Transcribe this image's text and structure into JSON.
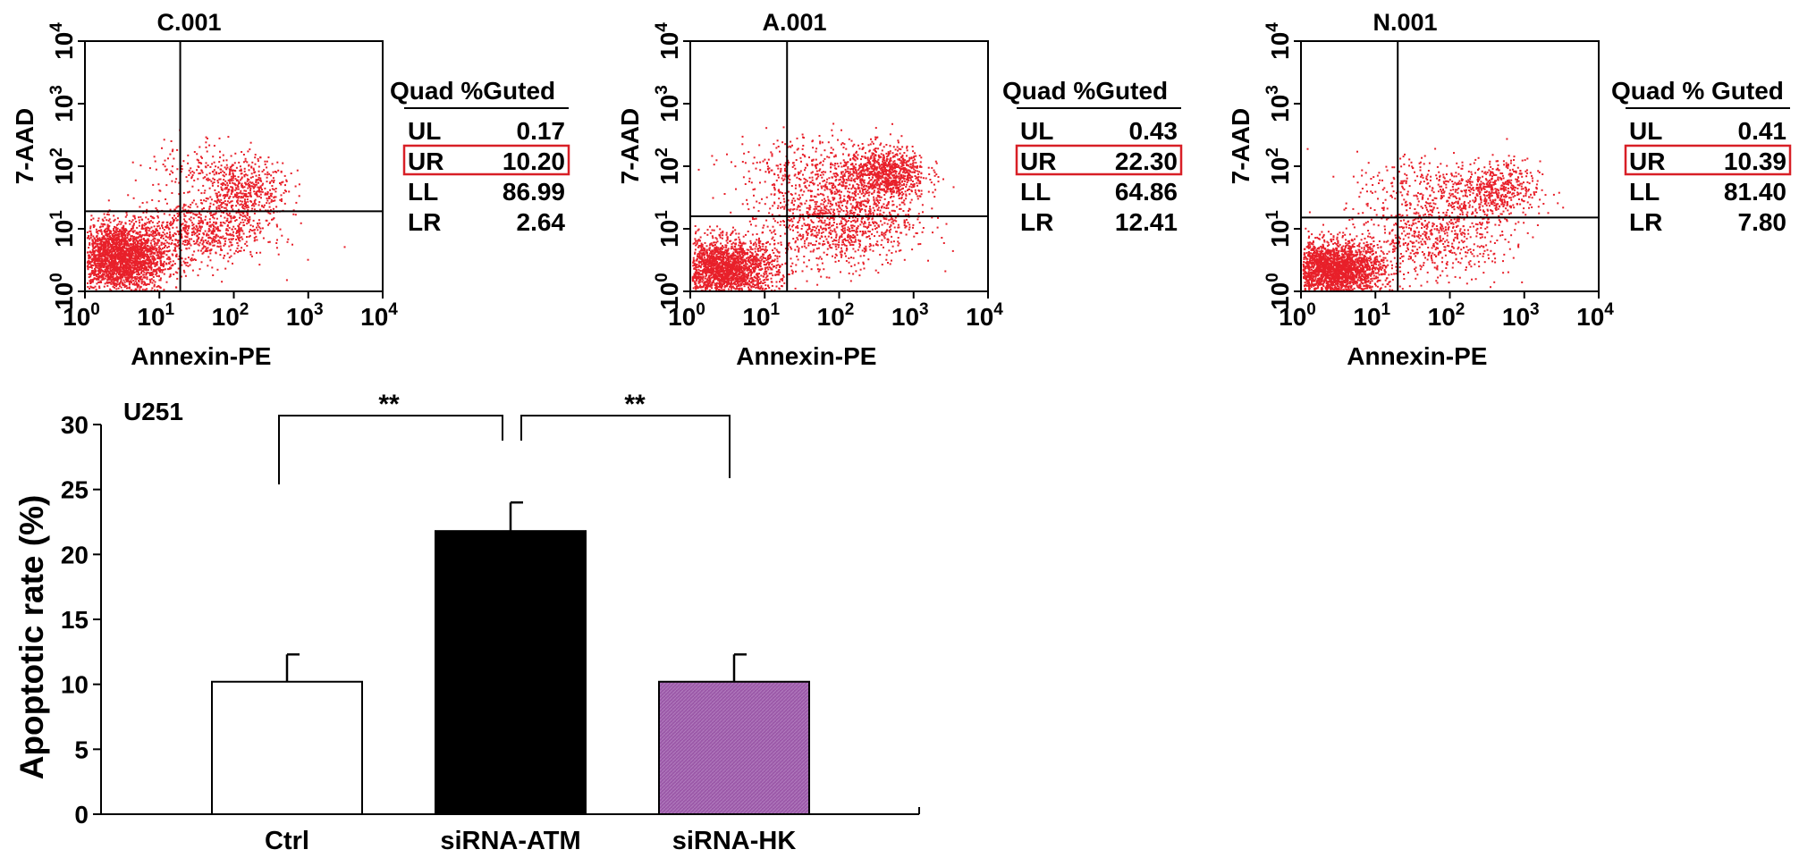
{
  "flow_panels": [
    {
      "title": "C.001",
      "xlabel": "Annexin-PE",
      "ylabel": "7-AAD",
      "x_ticks": [
        "0",
        "1",
        "2",
        "3",
        "4"
      ],
      "y_ticks": [
        "0",
        "1",
        "2",
        "3",
        "4"
      ],
      "tick_base": "10",
      "gate_header": "Quad %Guted",
      "gates": [
        {
          "quad": "UL",
          "value": "0.17"
        },
        {
          "quad": "UR",
          "value": "10.20"
        },
        {
          "quad": "LL",
          "value": "86.99"
        },
        {
          "quad": "LR",
          "value": "2.64"
        }
      ],
      "highlighted_gate": "UR",
      "gate_x": 1.28,
      "gate_y": 1.28
    },
    {
      "title": "A.001",
      "xlabel": "Annexin-PE",
      "ylabel": "7-AAD",
      "x_ticks": [
        "0",
        "1",
        "2",
        "3",
        "4"
      ],
      "y_ticks": [
        "0",
        "1",
        "2",
        "3",
        "4"
      ],
      "tick_base": "10",
      "gate_header": "Quad %Guted",
      "gates": [
        {
          "quad": "UL",
          "value": "0.43"
        },
        {
          "quad": "UR",
          "value": "22.30"
        },
        {
          "quad": "LL",
          "value": "64.86"
        },
        {
          "quad": "LR",
          "value": "12.41"
        }
      ],
      "highlighted_gate": "UR",
      "gate_x": 1.3,
      "gate_y": 1.2
    },
    {
      "title": "N.001",
      "xlabel": "Annexin-PE",
      "ylabel": "7-AAD",
      "x_ticks": [
        "0",
        "1",
        "2",
        "3",
        "4"
      ],
      "y_ticks": [
        "0",
        "1",
        "2",
        "3",
        "4"
      ],
      "tick_base": "10",
      "gate_header": "Quad % Guted",
      "gates": [
        {
          "quad": "UL",
          "value": "0.41"
        },
        {
          "quad": "UR",
          "value": "10.39"
        },
        {
          "quad": "LL",
          "value": "81.40"
        },
        {
          "quad": "LR",
          "value": "7.80"
        }
      ],
      "highlighted_gate": "UR",
      "gate_x": 1.3,
      "gate_y": 1.18
    }
  ],
  "colors": {
    "dots": "#e8202a",
    "gate_box": "#d81f26",
    "bar_ctrl": "#ffffff",
    "bar_atm": "#000000",
    "bar_hk": "#9b59a8"
  },
  "chart_data": {
    "type": "bar",
    "title": "U251",
    "xlabel": "",
    "ylabel": "Apoptotic rate (%)",
    "categories": [
      "Ctrl",
      "siRNA-ATM",
      "siRNA-HK"
    ],
    "values": [
      10.2,
      21.8,
      10.2
    ],
    "errors": [
      2.1,
      2.2,
      2.1
    ],
    "ylim": [
      0,
      30
    ],
    "yticks": [
      0,
      5,
      10,
      15,
      20,
      25,
      30
    ],
    "significance": [
      {
        "from": "Ctrl",
        "to": "siRNA-ATM",
        "label": "**"
      },
      {
        "from": "siRNA-ATM",
        "to": "siRNA-HK",
        "label": "**"
      }
    ],
    "grid": false,
    "legend": "none"
  }
}
